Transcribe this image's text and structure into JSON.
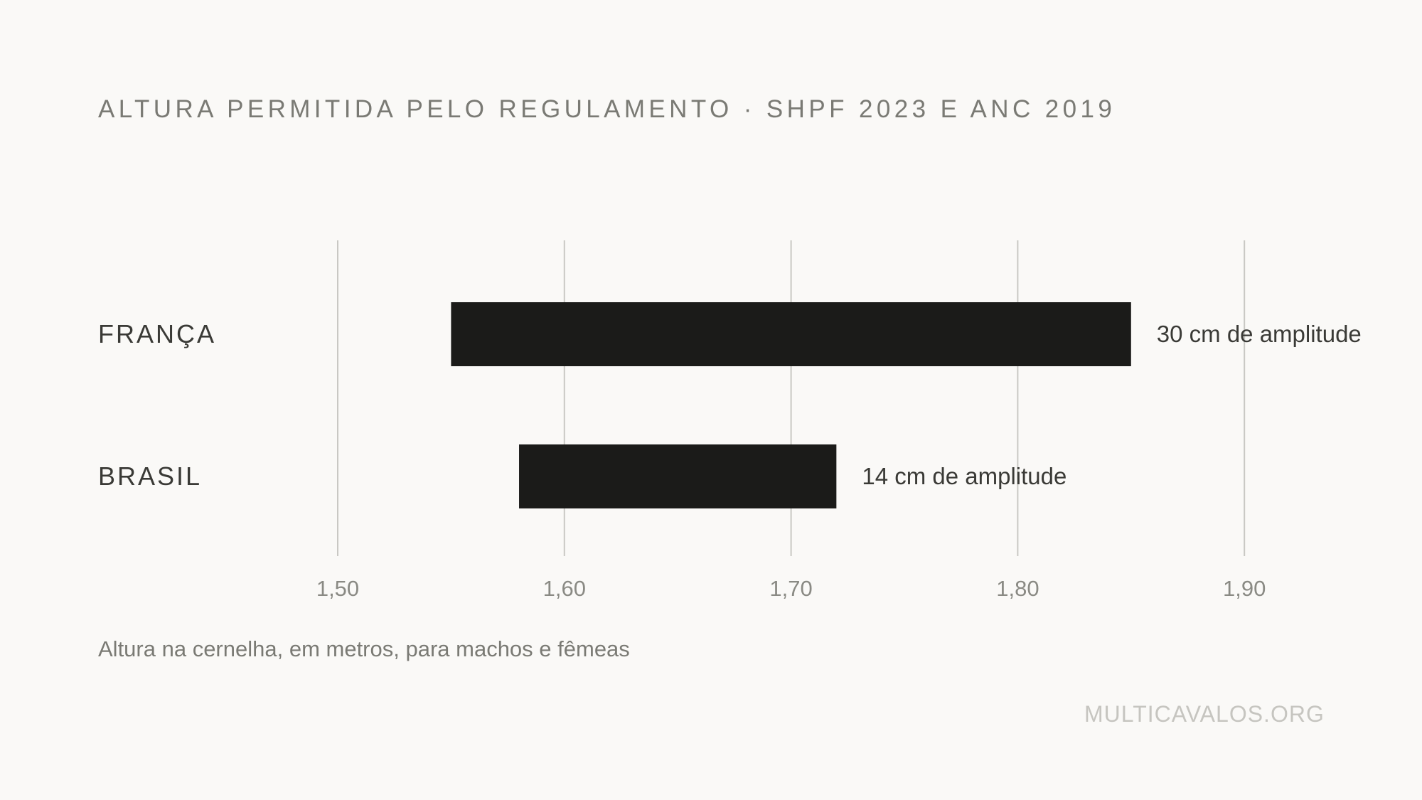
{
  "chart_data": {
    "type": "bar",
    "subtype": "floating-range-horizontal",
    "title": "ALTURA PERMITIDA PELO REGULAMENTO · SHPF 2023 E ANC 2019",
    "xlabel": "Altura na cernelha, em metros, para machos e fêmeas",
    "xlim": [
      1.45,
      1.95
    ],
    "ticks": [
      {
        "value": 1.5,
        "label": "1,50"
      },
      {
        "value": 1.6,
        "label": "1,60"
      },
      {
        "value": 1.7,
        "label": "1,70"
      },
      {
        "value": 1.8,
        "label": "1,80"
      },
      {
        "value": 1.9,
        "label": "1,90"
      }
    ],
    "grid": true,
    "bars": [
      {
        "category": "FRANÇA",
        "min": 1.55,
        "max": 1.85,
        "annotation": "30 cm de amplitude"
      },
      {
        "category": "BRASIL",
        "min": 1.58,
        "max": 1.72,
        "annotation": "14 cm de amplitude"
      }
    ],
    "source": "MULTICAVALOS.ORG",
    "colors": {
      "bar": "#1b1b19",
      "grid": "#c9c8c4",
      "background": "#faf9f7"
    }
  }
}
